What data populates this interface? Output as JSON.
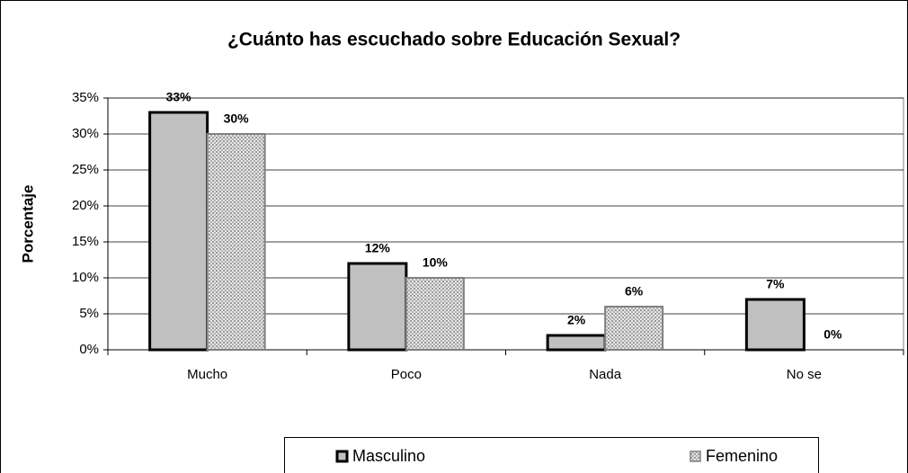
{
  "chart_data": {
    "type": "bar",
    "title": "¿Cuánto has escuchado sobre Educación Sexual?",
    "y_label": "Porcentaje",
    "categories": [
      "Mucho",
      "Poco",
      "Nada",
      "No se"
    ],
    "series": [
      {
        "name": "Masculino",
        "color": "#c0c0c0",
        "values": [
          33,
          12,
          2,
          7
        ],
        "value_labels": [
          "33%",
          "12%",
          "2%",
          "7%"
        ]
      },
      {
        "name": "Femenino",
        "color": "#d4d4d4",
        "values": [
          30,
          10,
          6,
          0
        ],
        "value_labels": [
          "30%",
          "10%",
          "6%",
          "0%"
        ]
      }
    ],
    "ylim": [
      0,
      35
    ],
    "yticks": [
      {
        "value": 0,
        "label": "0%"
      },
      {
        "value": 5,
        "label": "5%"
      },
      {
        "value": 10,
        "label": "10%"
      },
      {
        "value": 15,
        "label": "15%"
      },
      {
        "value": 20,
        "label": "20%"
      },
      {
        "value": 25,
        "label": "25%"
      },
      {
        "value": 30,
        "label": "30%"
      },
      {
        "value": 35,
        "label": "35%"
      }
    ],
    "grid": true,
    "legend": "bottom"
  }
}
